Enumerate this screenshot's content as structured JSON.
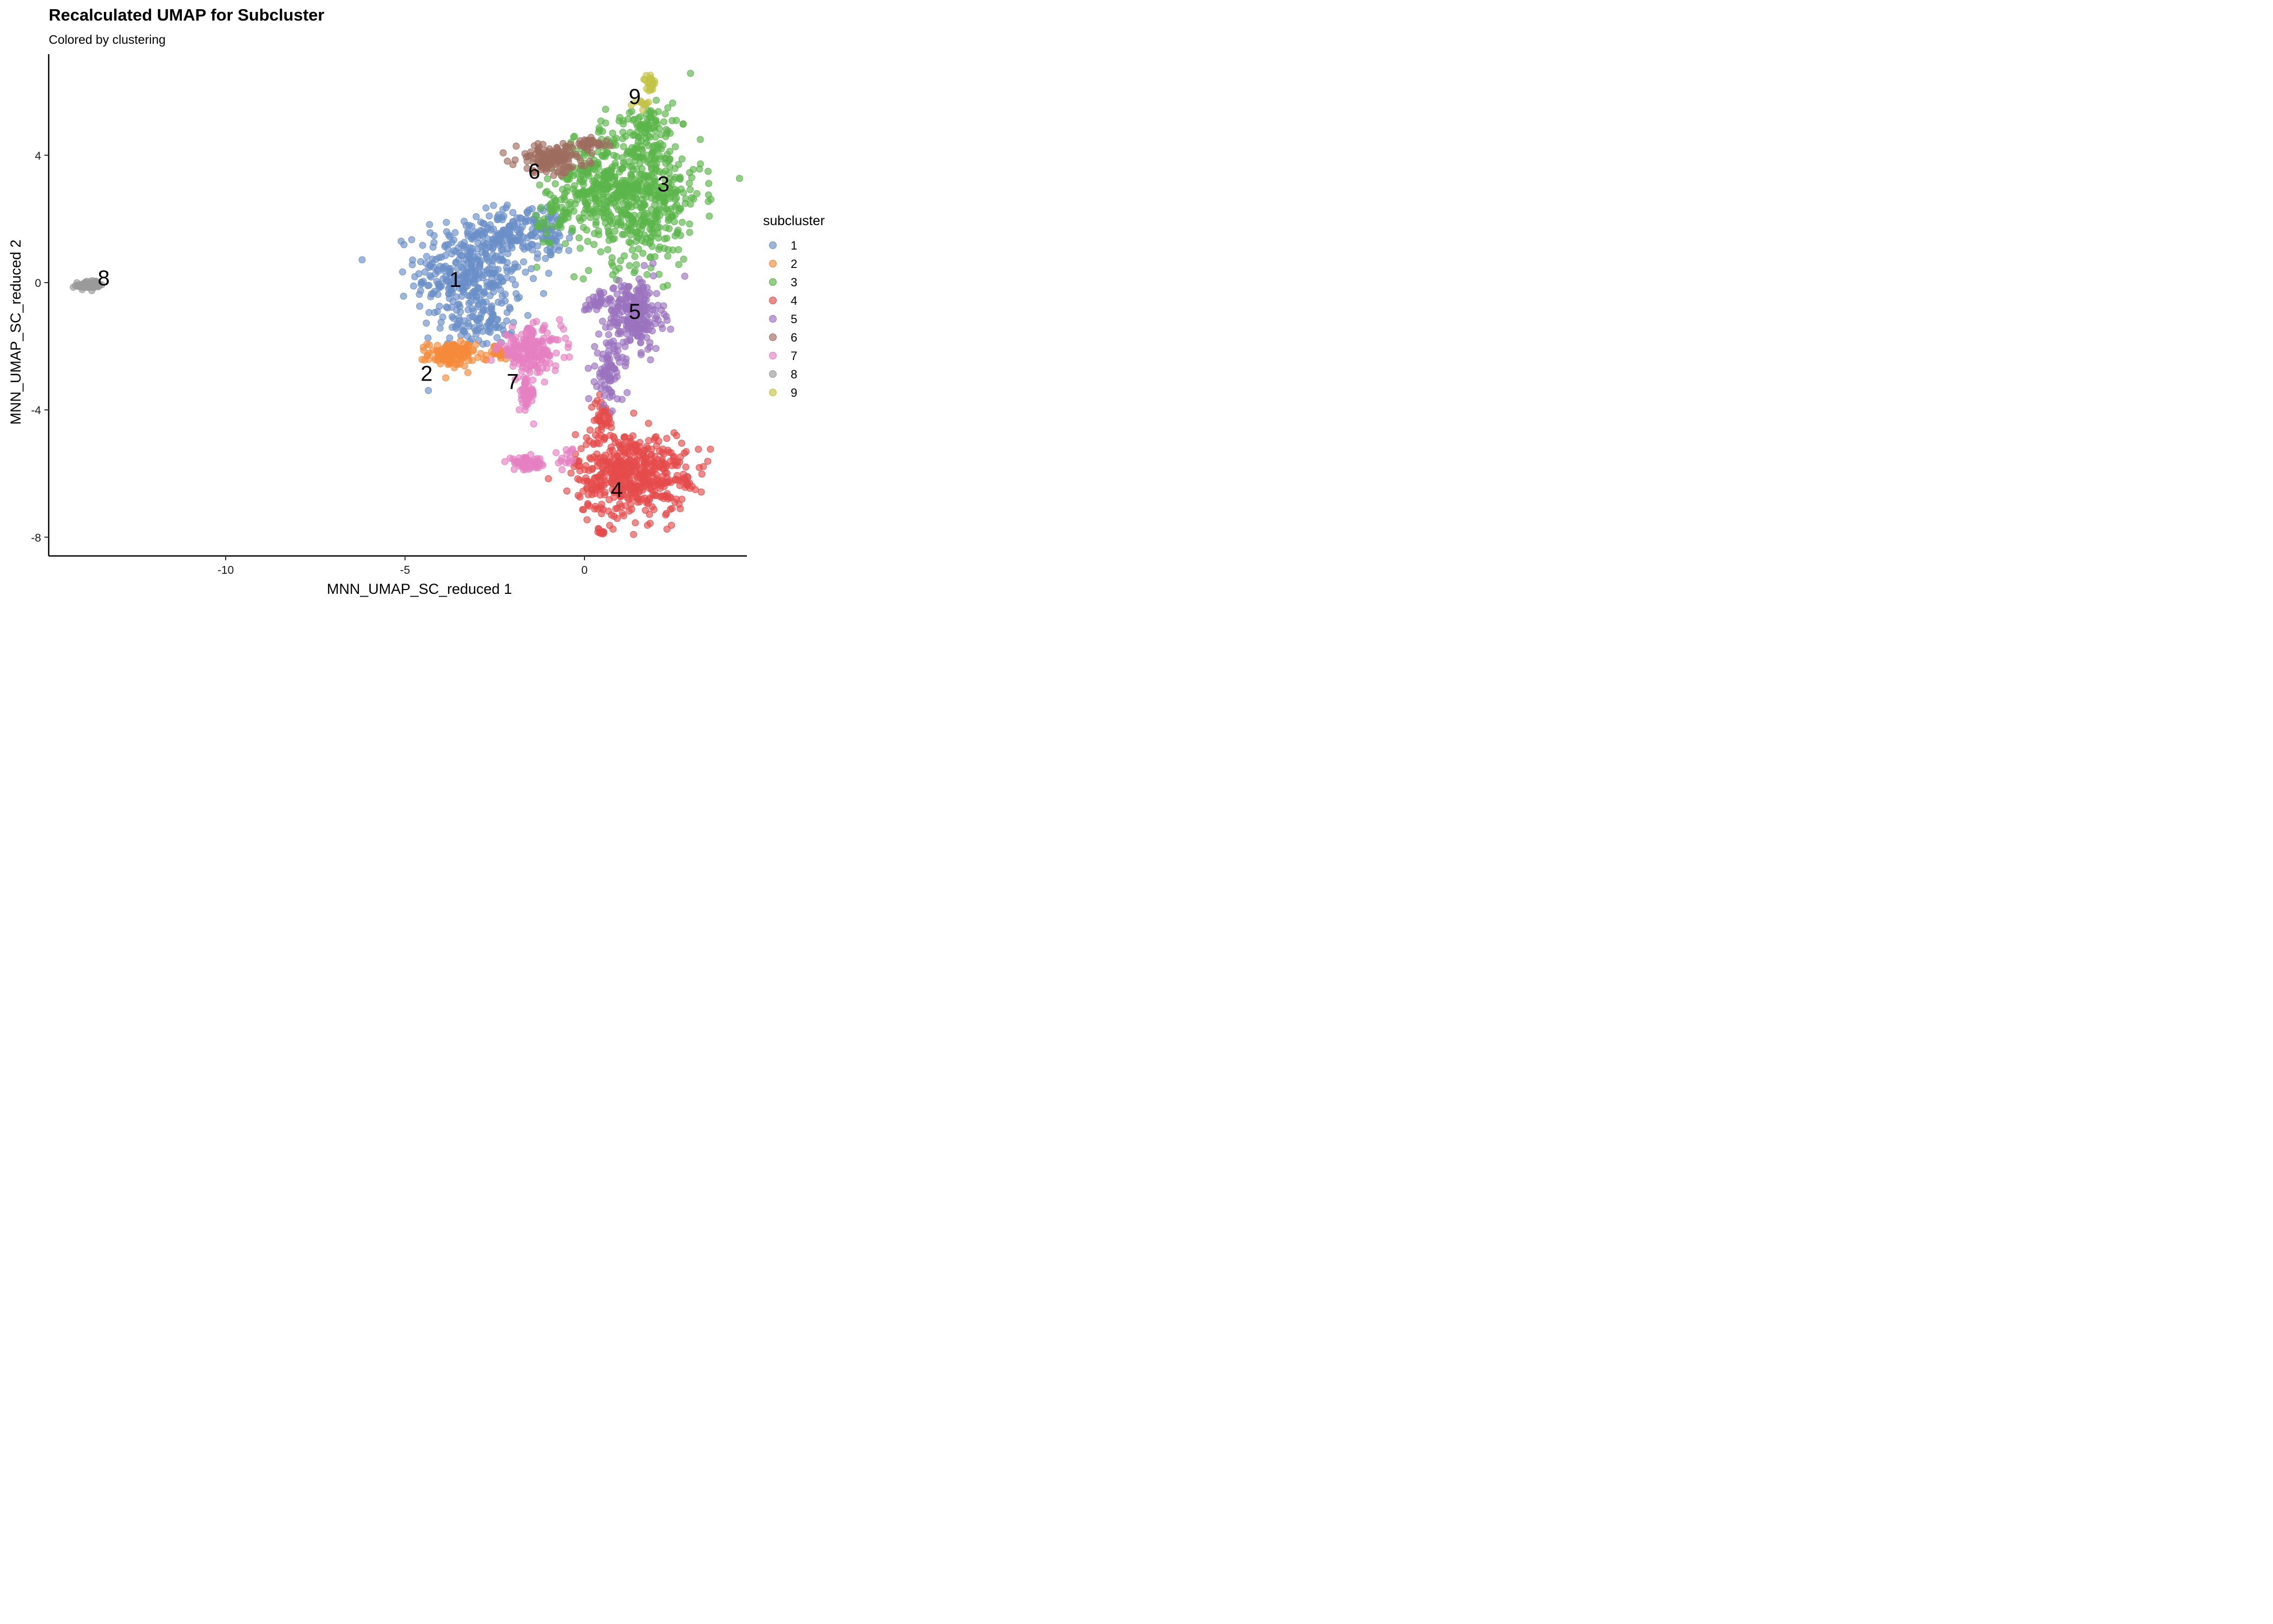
{
  "title": "Recalculated UMAP for Subcluster",
  "subtitle": "Colored by clustering",
  "chart_data": {
    "type": "scatter",
    "xlabel": "MNN_UMAP_SC_reduced 1",
    "ylabel": "MNN_UMAP_SC_reduced 2",
    "xlim": [
      -15,
      4.5
    ],
    "ylim": [
      -8.6,
      7.0
    ],
    "x_ticks": [
      -10,
      -5,
      0
    ],
    "y_ticks": [
      4,
      0,
      -4,
      -8
    ],
    "x_tick_labels": [
      "-10",
      "-5",
      "0"
    ],
    "y_tick_labels": [
      "4",
      "0",
      "-4",
      "-8"
    ],
    "grid": false,
    "legend": {
      "title": "subcluster",
      "position": "right"
    },
    "series": [
      {
        "name": "1",
        "color": "#6A8FC7",
        "label_pos": [
          -3.6,
          0.1
        ],
        "blobs": [
          {
            "cx": -3.2,
            "cy": 0.3,
            "rx": 1.35,
            "ry": 1.6,
            "n": 380
          },
          {
            "cx": -2.1,
            "cy": 1.6,
            "rx": 0.8,
            "ry": 0.6,
            "n": 90
          },
          {
            "cx": -1.0,
            "cy": 1.5,
            "rx": 0.6,
            "ry": 0.8,
            "n": 70
          },
          {
            "cx": -2.9,
            "cy": -1.4,
            "rx": 0.8,
            "ry": 0.5,
            "n": 60
          }
        ]
      },
      {
        "name": "2",
        "color": "#F58B3A",
        "label_pos": [
          -4.4,
          -2.85
        ],
        "blobs": [
          {
            "cx": -3.7,
            "cy": -2.25,
            "rx": 0.6,
            "ry": 0.35,
            "n": 130
          },
          {
            "cx": -2.4,
            "cy": -2.2,
            "rx": 0.35,
            "ry": 0.2,
            "n": 25
          }
        ]
      },
      {
        "name": "3",
        "color": "#5BB64A",
        "label_pos": [
          2.2,
          3.1
        ],
        "blobs": [
          {
            "cx": 1.5,
            "cy": 2.8,
            "rx": 1.6,
            "ry": 2.0,
            "n": 560
          },
          {
            "cx": 0.3,
            "cy": 3.2,
            "rx": 1.0,
            "ry": 1.2,
            "n": 160
          },
          {
            "cx": 1.8,
            "cy": 5.0,
            "rx": 0.6,
            "ry": 0.5,
            "n": 60
          },
          {
            "cx": -0.8,
            "cy": 2.0,
            "rx": 0.6,
            "ry": 1.0,
            "n": 50
          }
        ]
      },
      {
        "name": "4",
        "color": "#E54B4B",
        "label_pos": [
          0.9,
          -6.5
        ],
        "blobs": [
          {
            "cx": 1.3,
            "cy": -6.0,
            "rx": 1.4,
            "ry": 1.2,
            "n": 520
          },
          {
            "cx": 0.5,
            "cy": -4.3,
            "rx": 0.3,
            "ry": 0.6,
            "n": 40
          },
          {
            "cx": 2.8,
            "cy": -6.2,
            "rx": 0.12,
            "ry": 0.15,
            "n": 12
          },
          {
            "cx": 0.5,
            "cy": -7.85,
            "rx": 0.15,
            "ry": 0.05,
            "n": 8
          }
        ]
      },
      {
        "name": "5",
        "color": "#9A72BE",
        "label_pos": [
          1.4,
          -0.9
        ],
        "blobs": [
          {
            "cx": 1.4,
            "cy": -1.0,
            "rx": 0.7,
            "ry": 1.0,
            "n": 230
          },
          {
            "cx": 0.7,
            "cy": -2.8,
            "rx": 0.35,
            "ry": 0.9,
            "n": 80
          },
          {
            "cx": 0.3,
            "cy": -0.6,
            "rx": 0.4,
            "ry": 0.3,
            "n": 30
          }
        ]
      },
      {
        "name": "6",
        "color": "#9E6D60",
        "label_pos": [
          -1.4,
          3.5
        ],
        "blobs": [
          {
            "cx": -0.9,
            "cy": 3.9,
            "rx": 0.9,
            "ry": 0.4,
            "n": 150
          },
          {
            "cx": 0.1,
            "cy": 4.35,
            "rx": 0.5,
            "ry": 0.15,
            "n": 40
          }
        ]
      },
      {
        "name": "7",
        "color": "#E57FC1",
        "label_pos": [
          -2.0,
          -3.1
        ],
        "blobs": [
          {
            "cx": -1.5,
            "cy": -2.1,
            "rx": 0.8,
            "ry": 0.6,
            "n": 190
          },
          {
            "cx": -1.6,
            "cy": -3.5,
            "rx": 0.2,
            "ry": 0.5,
            "n": 50
          },
          {
            "cx": -1.6,
            "cy": -5.7,
            "rx": 0.5,
            "ry": 0.18,
            "n": 60
          },
          {
            "cx": -0.5,
            "cy": -5.5,
            "rx": 0.2,
            "ry": 0.3,
            "n": 15
          }
        ]
      },
      {
        "name": "8",
        "color": "#9A9A9A",
        "label_pos": [
          -13.4,
          0.15
        ],
        "blobs": [
          {
            "cx": -13.8,
            "cy": -0.08,
            "rx": 0.35,
            "ry": 0.12,
            "n": 70
          }
        ]
      },
      {
        "name": "9",
        "color": "#C3C347",
        "label_pos": [
          1.4,
          5.85
        ],
        "blobs": [
          {
            "cx": 1.85,
            "cy": 6.25,
            "rx": 0.12,
            "ry": 0.2,
            "n": 30
          },
          {
            "cx": 1.6,
            "cy": 5.65,
            "rx": 0.2,
            "ry": 0.12,
            "n": 10
          }
        ]
      }
    ]
  }
}
